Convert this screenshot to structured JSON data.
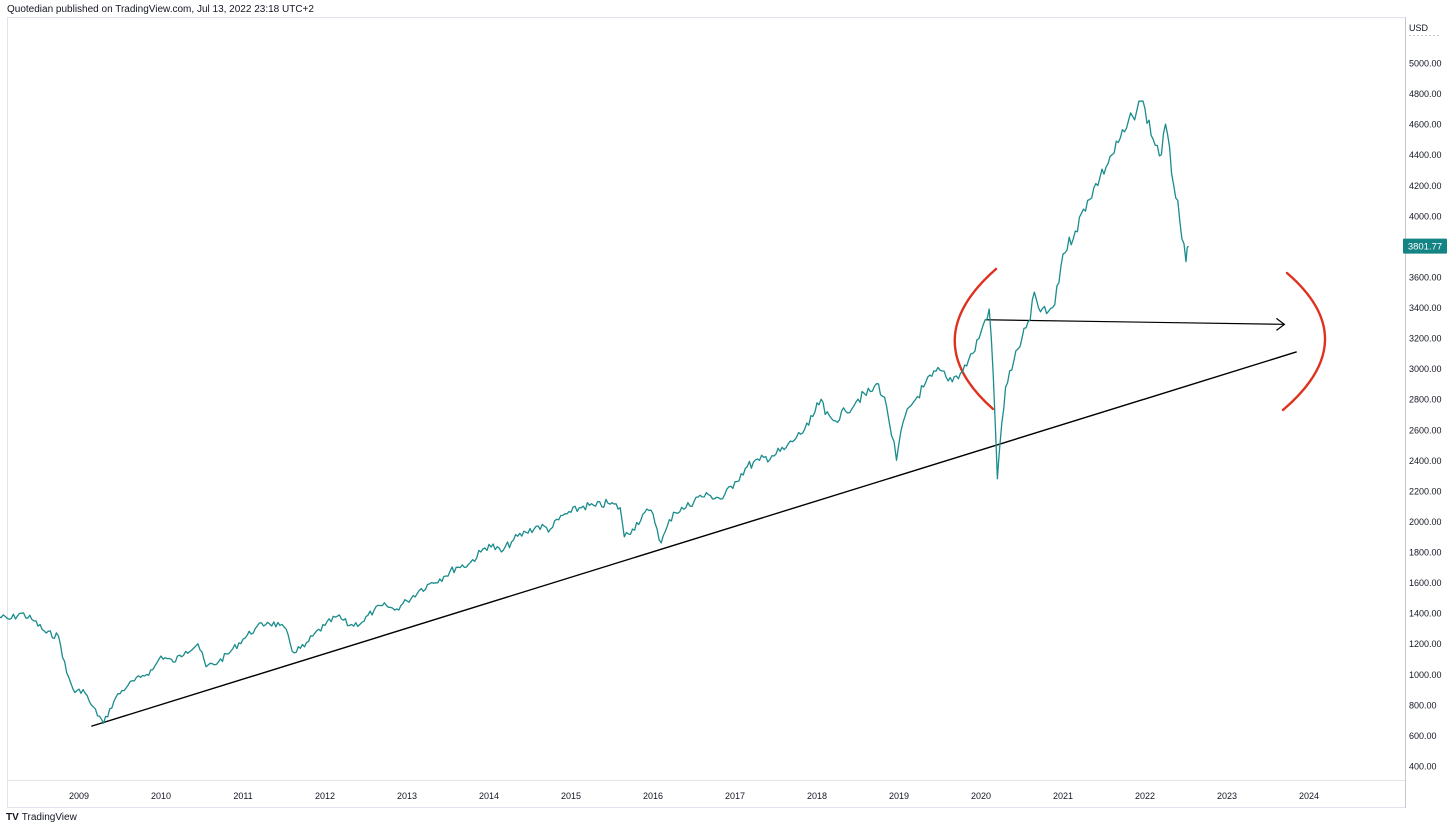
{
  "header": {
    "published_text": "Quotedian published on TradingView.com, Jul 13, 2022 23:18 UTC+2"
  },
  "footer": {
    "logo_mark": "TV",
    "logo_text": "TradingView"
  },
  "colors": {
    "series": "#1a8c8c",
    "price_badge_bg": "#138383",
    "trendline": "#000000",
    "annotation_red": "#e0301e",
    "axis_text": "#131722",
    "frame": "#c8c8c8"
  },
  "chart_data": {
    "type": "line",
    "currency": "USD",
    "last_price": "3801.77",
    "ylim": [
      300,
      5200
    ],
    "x_range": [
      2008.0,
      2024.85
    ],
    "y_ticks": [
      "400.00",
      "600.00",
      "800.00",
      "1000.00",
      "1200.00",
      "1400.00",
      "1600.00",
      "1800.00",
      "2000.00",
      "2200.00",
      "2400.00",
      "2600.00",
      "2800.00",
      "3000.00",
      "3200.00",
      "3400.00",
      "3600.00",
      "3800.00",
      "4000.00",
      "4200.00",
      "4400.00",
      "4600.00",
      "4800.00",
      "5000.00"
    ],
    "x_ticks": [
      "2009",
      "2010",
      "2011",
      "2012",
      "2013",
      "2014",
      "2015",
      "2016",
      "2017",
      "2018",
      "2019",
      "2020",
      "2021",
      "2022",
      "2023",
      "2024"
    ],
    "series": [
      {
        "x": [
          2008.0,
          2008.15,
          2008.3,
          2008.45,
          2008.6,
          2008.75,
          2008.85,
          2008.95,
          2009.05,
          2009.15,
          2009.3,
          2009.45,
          2009.6,
          2009.75,
          2009.9,
          2010.0,
          2010.15,
          2010.3,
          2010.45,
          2010.55,
          2010.7,
          2010.85,
          2011.0,
          2011.15,
          2011.3,
          2011.45,
          2011.55,
          2011.6,
          2011.75,
          2011.85,
          2012.0,
          2012.15,
          2012.3,
          2012.45,
          2012.6,
          2012.75,
          2012.85,
          2013.0,
          2013.15,
          2013.3,
          2013.45,
          2013.6,
          2013.75,
          2013.9,
          2014.0,
          2014.15,
          2014.3,
          2014.45,
          2014.6,
          2014.75,
          2014.9,
          2015.0,
          2015.15,
          2015.3,
          2015.45,
          2015.6,
          2015.65,
          2015.75,
          2015.9,
          2016.0,
          2016.1,
          2016.25,
          2016.4,
          2016.55,
          2016.7,
          2016.85,
          2017.0,
          2017.15,
          2017.3,
          2017.45,
          2017.6,
          2017.75,
          2017.9,
          2018.05,
          2018.1,
          2018.2,
          2018.35,
          2018.5,
          2018.65,
          2018.75,
          2018.85,
          2018.97,
          2019.05,
          2019.15,
          2019.3,
          2019.4,
          2019.5,
          2019.6,
          2019.75,
          2019.9,
          2020.0,
          2020.1,
          2020.15,
          2020.2,
          2020.23,
          2020.3,
          2020.4,
          2020.5,
          2020.6,
          2020.65,
          2020.7,
          2020.8,
          2020.9,
          2021.0,
          2021.15,
          2021.3,
          2021.45,
          2021.6,
          2021.75,
          2021.85,
          2021.95,
          2022.0,
          2022.1,
          2022.2,
          2022.25,
          2022.35,
          2022.4,
          2022.45,
          2022.5,
          2022.53
        ],
        "y": [
          1380,
          1360,
          1400,
          1350,
          1270,
          1250,
          1010,
          880,
          900,
          800,
          680,
          850,
          930,
          980,
          1030,
          1120,
          1080,
          1150,
          1200,
          1050,
          1080,
          1150,
          1230,
          1300,
          1340,
          1320,
          1260,
          1150,
          1180,
          1250,
          1320,
          1380,
          1320,
          1340,
          1420,
          1450,
          1420,
          1480,
          1550,
          1600,
          1640,
          1700,
          1720,
          1800,
          1850,
          1800,
          1880,
          1930,
          1970,
          1950,
          2040,
          2060,
          2100,
          2100,
          2120,
          2090,
          1900,
          1950,
          2060,
          2050,
          1860,
          2060,
          2090,
          2160,
          2170,
          2150,
          2260,
          2360,
          2400,
          2430,
          2470,
          2550,
          2630,
          2800,
          2700,
          2660,
          2720,
          2800,
          2850,
          2900,
          2750,
          2400,
          2650,
          2760,
          2880,
          2950,
          2990,
          2920,
          2970,
          3100,
          3240,
          3390,
          2950,
          2280,
          2500,
          2880,
          3050,
          3200,
          3320,
          3500,
          3400,
          3360,
          3420,
          3750,
          3900,
          4100,
          4250,
          4400,
          4550,
          4650,
          4750,
          4700,
          4500,
          4400,
          4600,
          4200,
          4100,
          3850,
          3700,
          3801.77
        ]
      }
    ],
    "annotations": {
      "trendline": {
        "from": [
          2009.15,
          660
        ],
        "to": [
          2023.85,
          3110
        ]
      },
      "arrow": {
        "from": [
          2020.05,
          3320
        ],
        "to": [
          2023.7,
          3290
        ]
      },
      "arcs": [
        "left-bracket-around-2020",
        "right-bracket-around-2023.7"
      ]
    }
  }
}
